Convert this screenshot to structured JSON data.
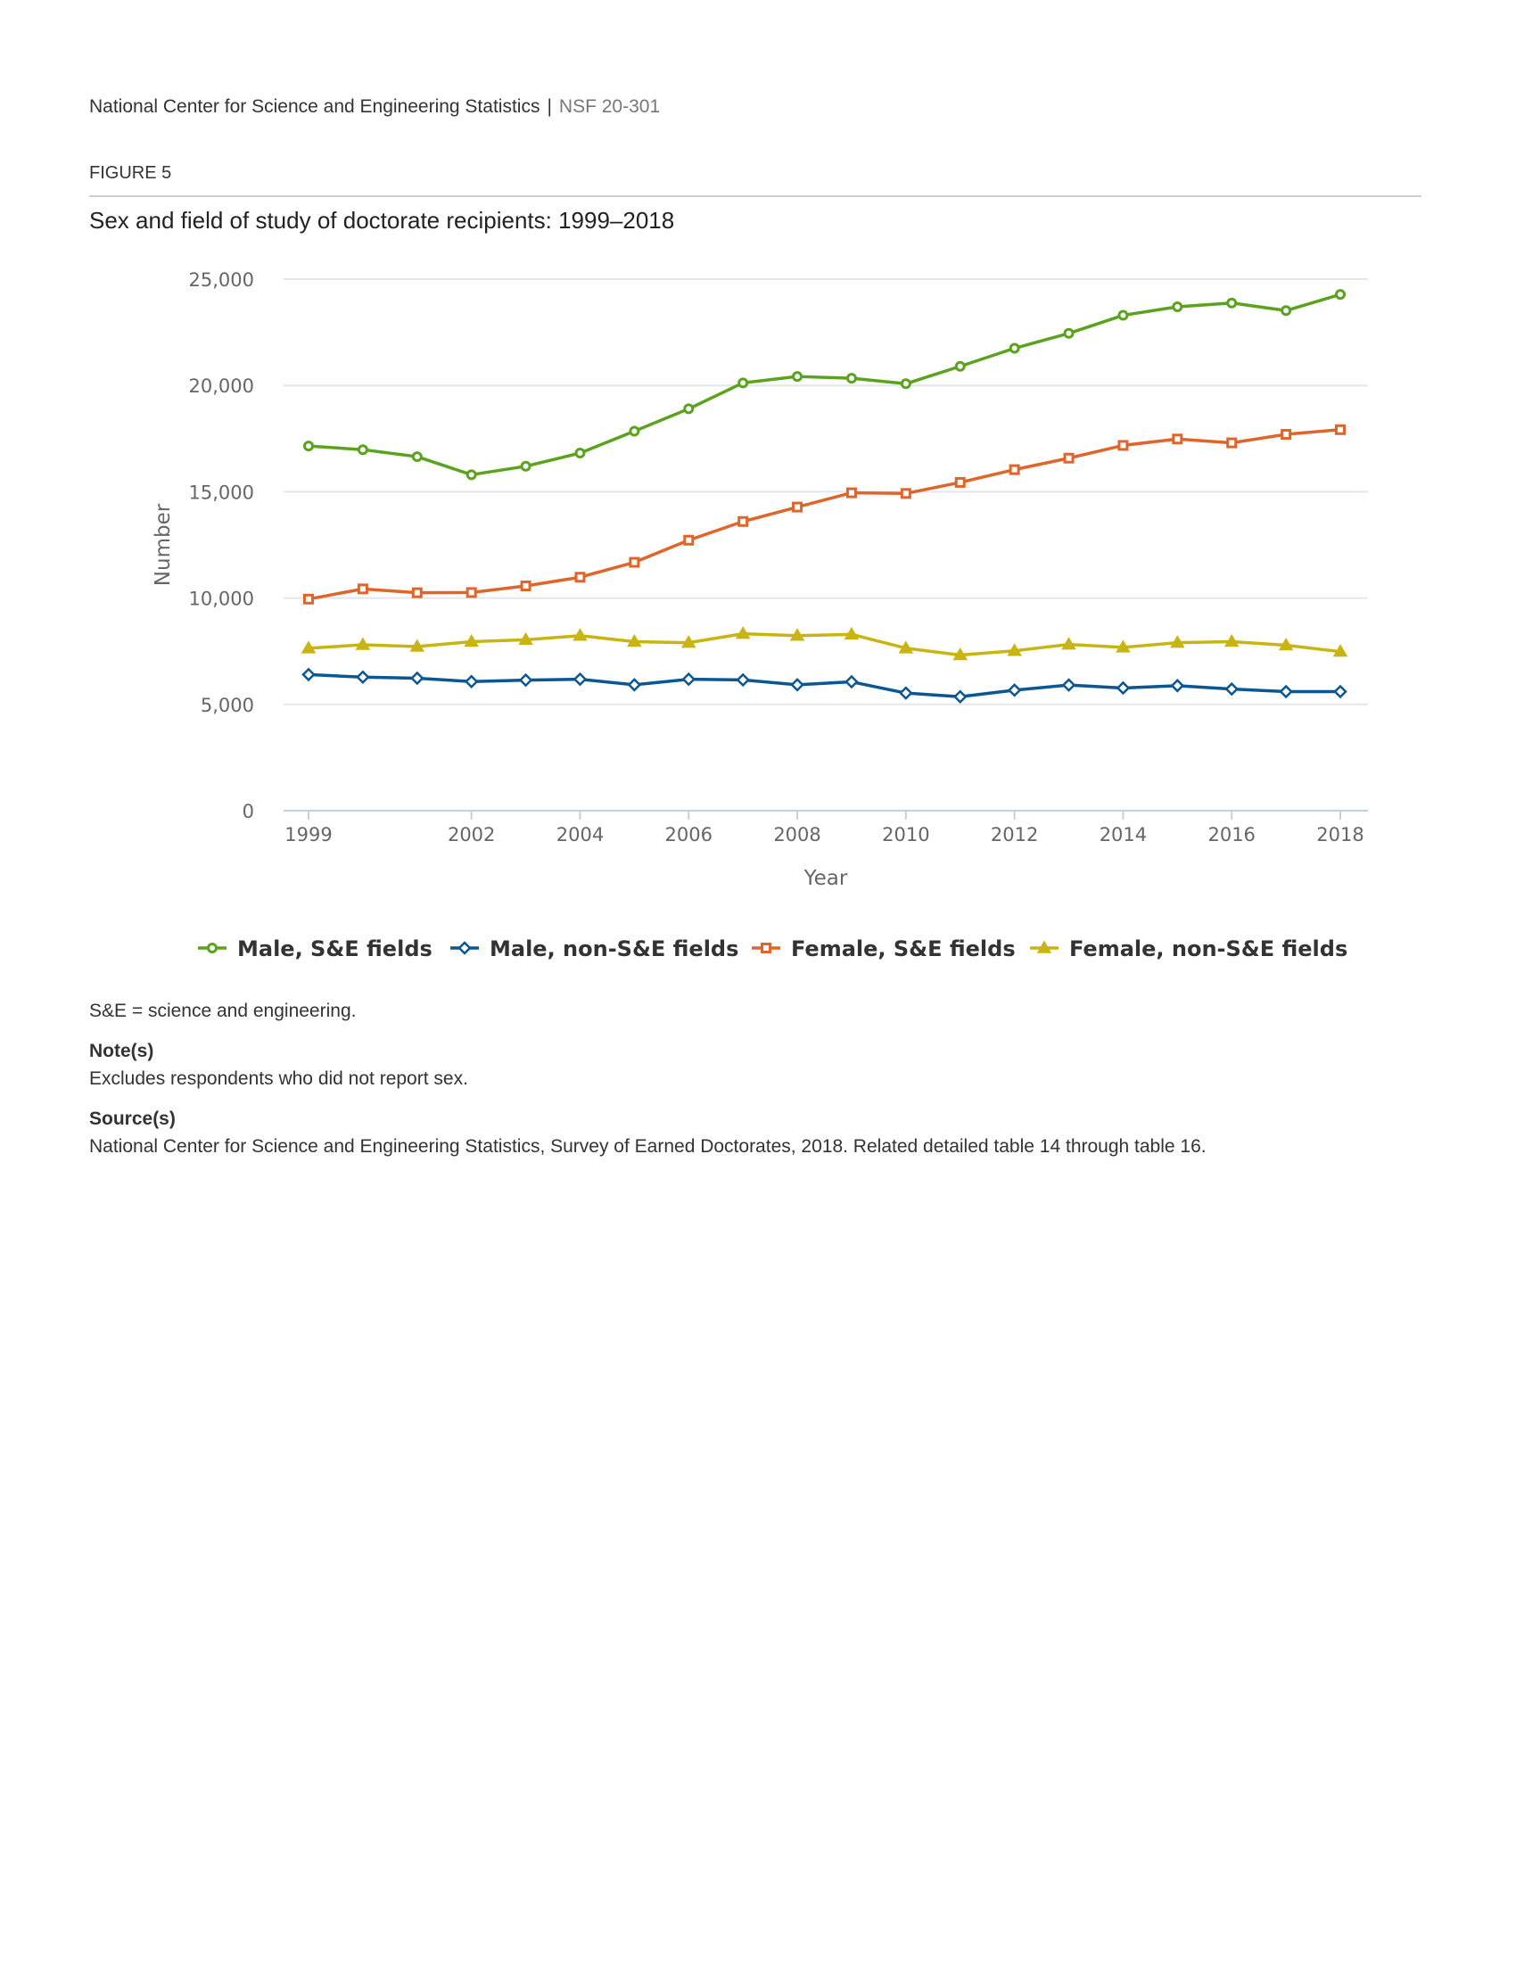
{
  "header": {
    "organization": "National Center for Science and Engineering Statistics",
    "separator": "|",
    "publication": "NSF 20-301"
  },
  "figure_label": "FIGURE 5",
  "colors": {
    "male_se": "#5ba31f",
    "male_non_se": "#0a5794",
    "female_se": "#e0652a",
    "female_non_se": "#c8b512",
    "grid": "#e3e6ea",
    "axis": "#c5d0de"
  },
  "chart_data": {
    "type": "line",
    "title": "Sex and field of study of doctorate recipients: 1999–2018",
    "xlabel": "Year",
    "ylabel": "Number",
    "xlim": [
      1999,
      2018
    ],
    "ylim": [
      0,
      25000
    ],
    "x_ticks": [
      1999,
      2002,
      2004,
      2006,
      2008,
      2010,
      2012,
      2014,
      2016,
      2018
    ],
    "y_ticks": [
      0,
      5000,
      10000,
      15000,
      20000,
      25000
    ],
    "y_tick_labels": [
      "0",
      "5,000",
      "10,000",
      "15,000",
      "20,000",
      "25,000"
    ],
    "grid": true,
    "legend_position": "bottom",
    "x": [
      1999,
      2000,
      2001,
      2002,
      2003,
      2004,
      2005,
      2006,
      2007,
      2008,
      2009,
      2010,
      2011,
      2012,
      2013,
      2014,
      2015,
      2016,
      2017,
      2018
    ],
    "series": [
      {
        "name": "Male, S&E fields",
        "color_key": "male_se",
        "marker": "circle",
        "values": [
          17150,
          16980,
          16650,
          15800,
          16200,
          16820,
          17850,
          18900,
          20120,
          20420,
          20340,
          20080,
          20900,
          21750,
          22450,
          23300,
          23700,
          23880,
          23520,
          24280
        ]
      },
      {
        "name": "Male, non-S&E fields",
        "color_key": "male_non_se",
        "marker": "diamond",
        "values": [
          6400,
          6280,
          6230,
          6070,
          6140,
          6180,
          5920,
          6180,
          6150,
          5920,
          6060,
          5530,
          5360,
          5670,
          5910,
          5770,
          5880,
          5720,
          5600,
          5600
        ]
      },
      {
        "name": "Female, S&E fields",
        "color_key": "female_se",
        "marker": "square",
        "values": [
          9950,
          10430,
          10250,
          10260,
          10570,
          10980,
          11680,
          12720,
          13600,
          14280,
          14950,
          14920,
          15440,
          16040,
          16580,
          17180,
          17480,
          17300,
          17700,
          17920
        ]
      },
      {
        "name": "Female, non-S&E fields",
        "color_key": "female_non_se",
        "marker": "triangle",
        "values": [
          7640,
          7800,
          7720,
          7950,
          8040,
          8230,
          7950,
          7900,
          8320,
          8230,
          8290,
          7640,
          7320,
          7520,
          7820,
          7680,
          7900,
          7950,
          7780,
          7480
        ]
      }
    ]
  },
  "notes": {
    "abbreviation": "S&E = science and engineering.",
    "note_heading": "Note(s)",
    "note_text": "Excludes respondents who did not report sex.",
    "source_heading": "Source(s)",
    "source_text": "National Center for Science and Engineering Statistics, Survey of Earned Doctorates, 2018. Related detailed table 14 through table 16."
  }
}
